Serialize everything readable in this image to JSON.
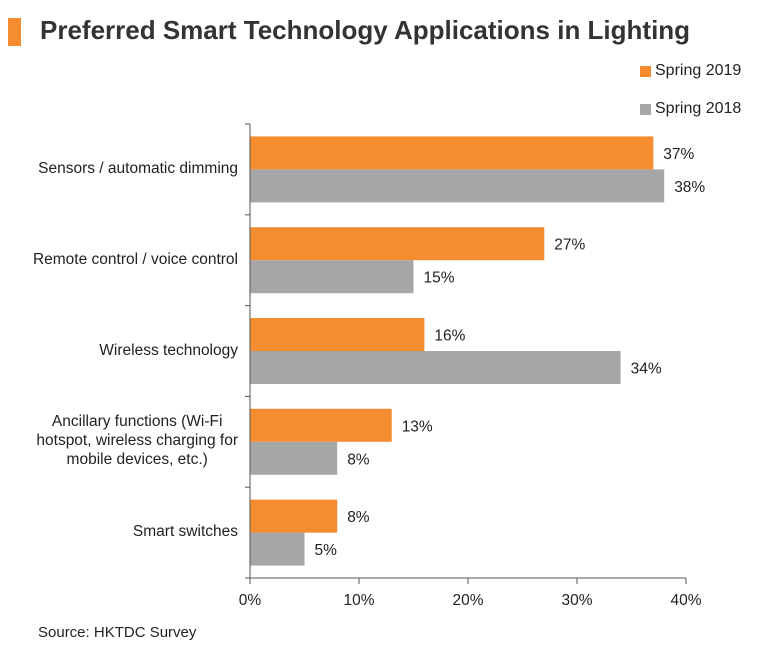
{
  "title": "Preferred Smart Technology Applications in Lighting",
  "source": "Source: HKTDC Survey",
  "colors": {
    "accent": "#f58c30",
    "spring2019": "#f58c30",
    "spring2018": "#a6a6a6"
  },
  "legend": [
    {
      "label": "Spring 2019",
      "color": "#f58c30"
    },
    {
      "label": "Spring 2018",
      "color": "#a6a6a6"
    }
  ],
  "chart_data": {
    "type": "bar",
    "orientation": "horizontal",
    "title": "Preferred Smart Technology Applications in Lighting",
    "categories": [
      "Sensors / automatic dimming",
      "Remote control / voice control",
      "Wireless technology",
      "Ancillary functions (Wi-Fi hotspot, wireless charging for mobile devices, etc.)",
      "Smart switches"
    ],
    "category_lines": [
      [
        "Sensors / automatic dimming"
      ],
      [
        "Remote control / voice control"
      ],
      [
        "Wireless technology"
      ],
      [
        "Ancillary functions (Wi-Fi",
        "hotspot, wireless charging for",
        "mobile devices, etc.)"
      ],
      [
        "Smart switches"
      ]
    ],
    "series": [
      {
        "name": "Spring 2019",
        "values": [
          37,
          27,
          16,
          13,
          8
        ],
        "labels": [
          "37%",
          "27%",
          "16%",
          "13%",
          "8%"
        ]
      },
      {
        "name": "Spring 2018",
        "values": [
          38,
          15,
          34,
          8,
          5
        ],
        "labels": [
          "38%",
          "15%",
          "34%",
          "8%",
          "5%"
        ]
      }
    ],
    "xlim": [
      0,
      40
    ],
    "xticks": [
      0,
      10,
      20,
      30,
      40
    ],
    "xtick_labels": [
      "0%",
      "10%",
      "20%",
      "30%",
      "40%"
    ],
    "grid": false,
    "legend_position": "top-right",
    "xlabel": "",
    "ylabel": ""
  }
}
